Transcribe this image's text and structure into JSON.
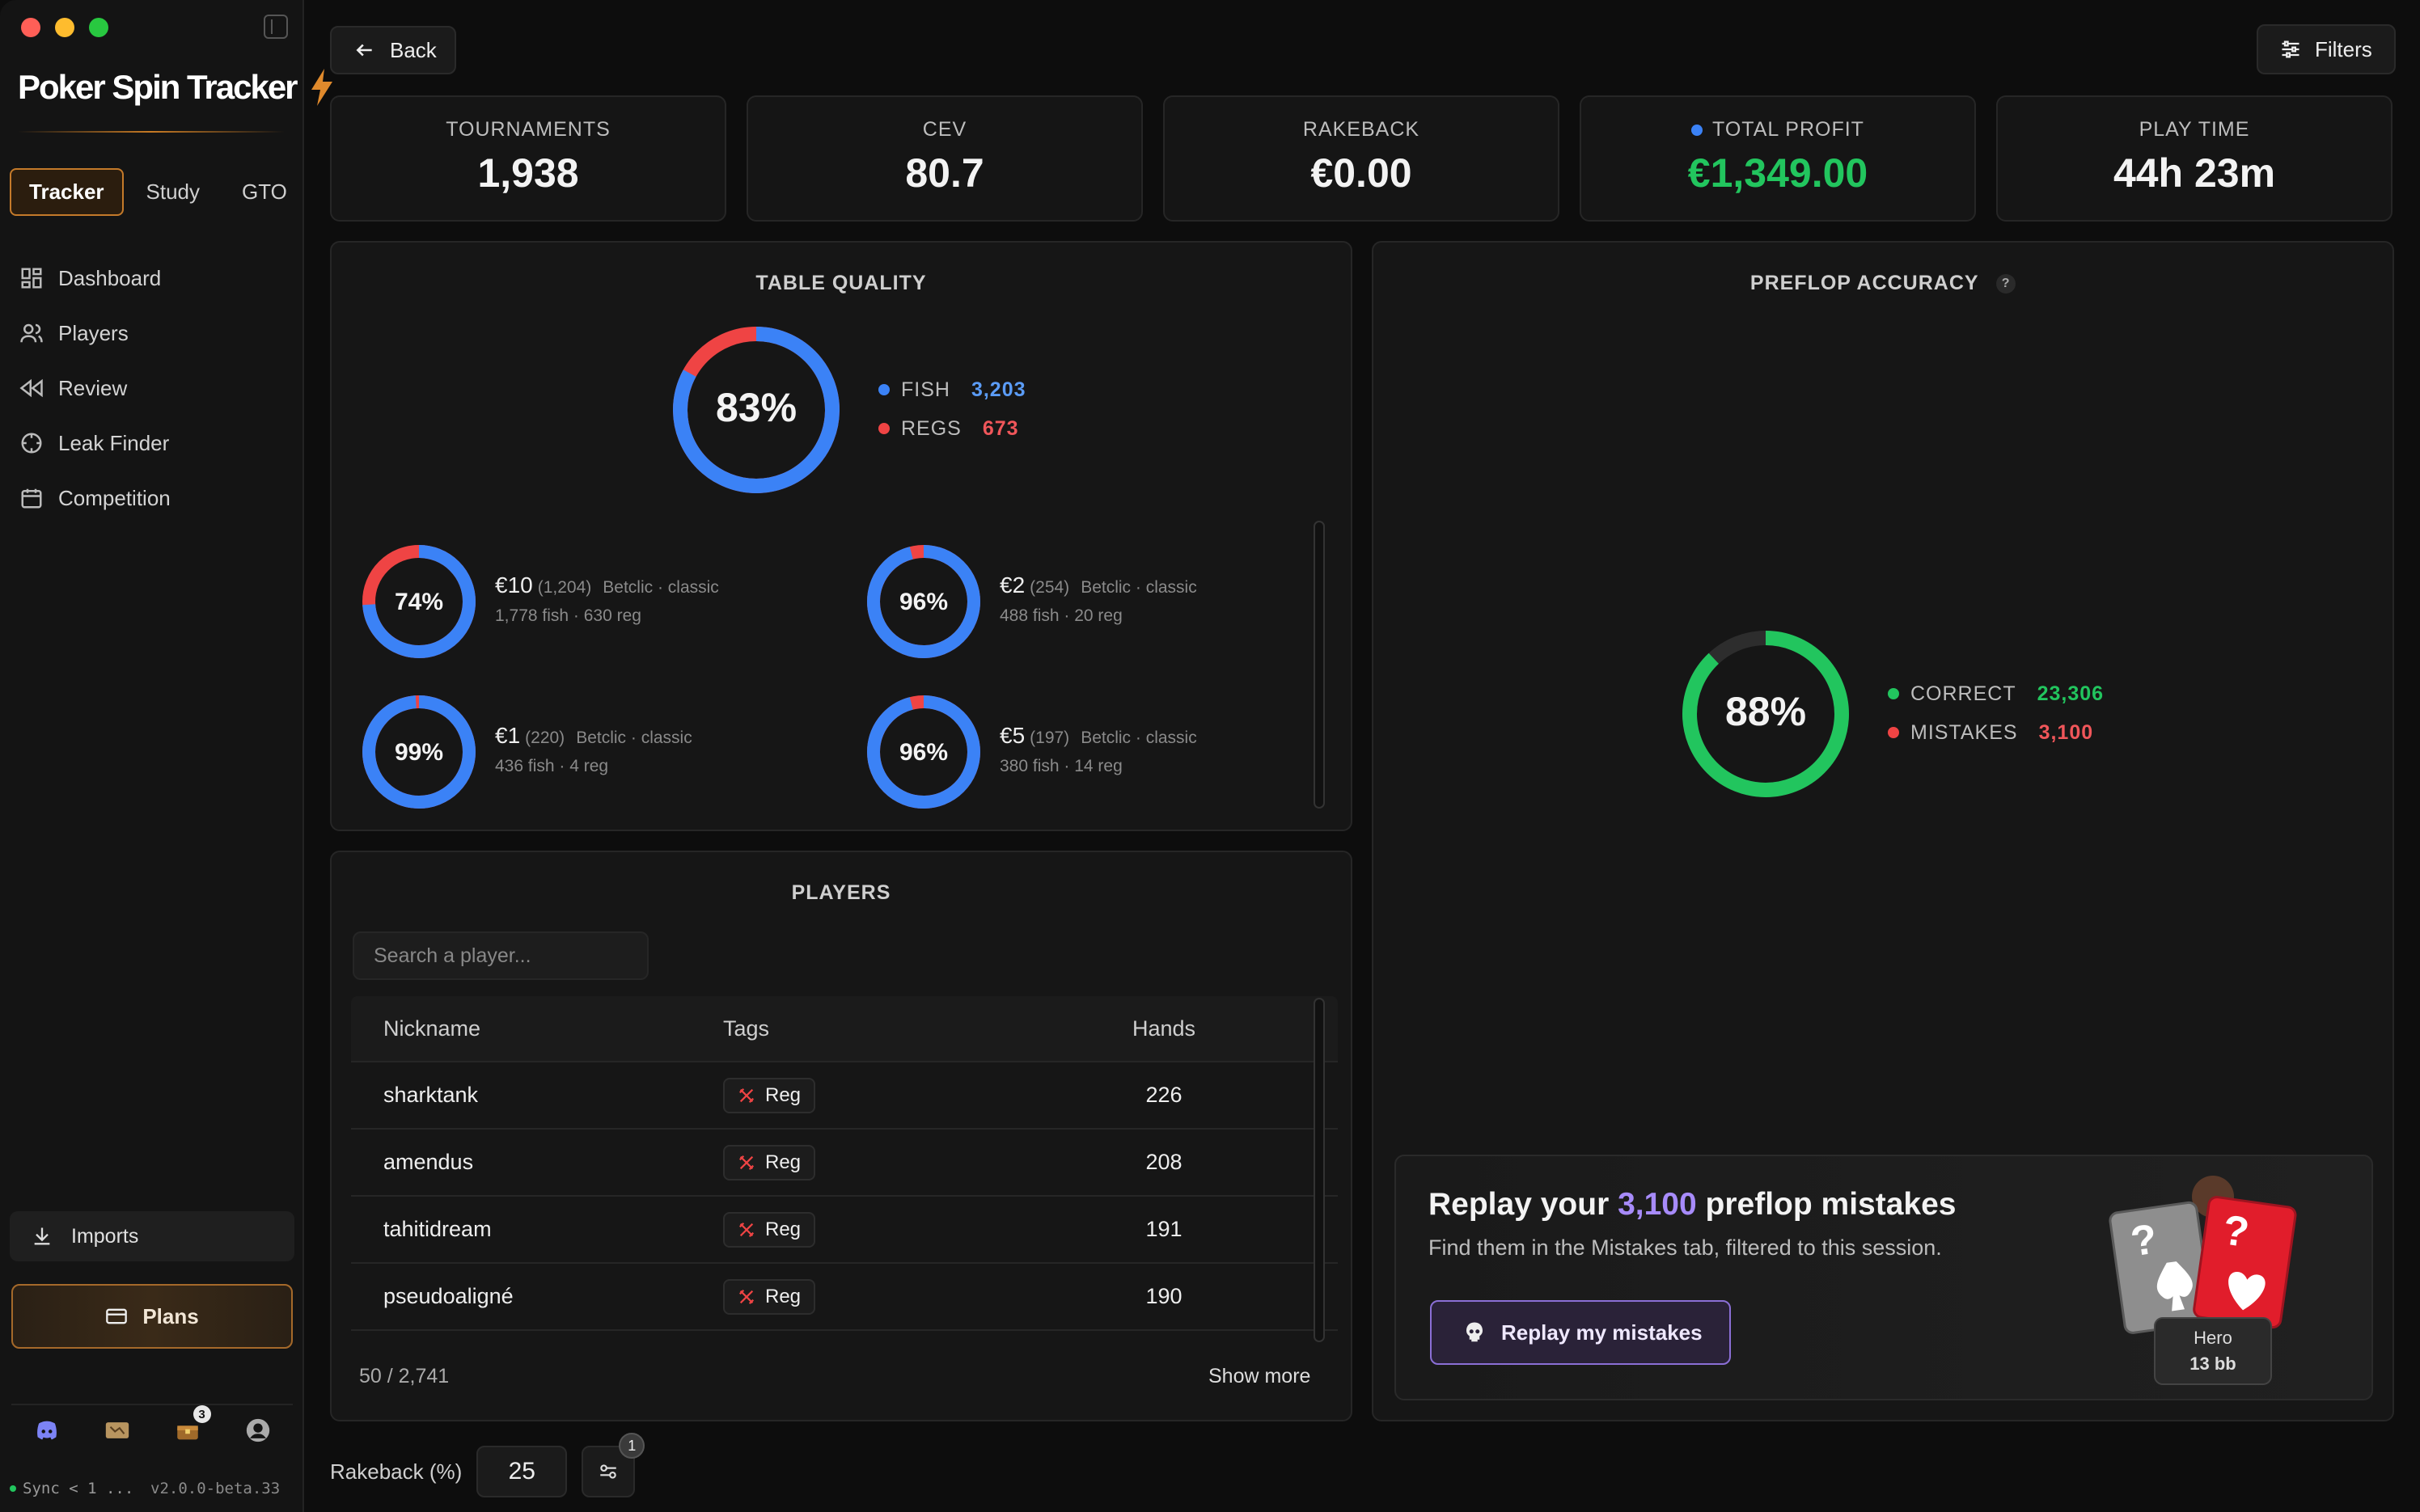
{
  "app": {
    "name": "Poker Spin Tracker"
  },
  "modes": [
    {
      "label": "Tracker",
      "active": true
    },
    {
      "label": "Study"
    },
    {
      "label": "GTO"
    }
  ],
  "nav": [
    {
      "label": "Dashboard",
      "icon": "dashboard-icon"
    },
    {
      "label": "Players",
      "icon": "users-icon"
    },
    {
      "label": "Review",
      "icon": "rewind-icon"
    },
    {
      "label": "Leak Finder",
      "icon": "crosshair-icon"
    },
    {
      "label": "Competition",
      "icon": "calendar-icon"
    }
  ],
  "sidebar": {
    "imports": "Imports",
    "plans": "Plans",
    "notifications_count": "3",
    "sync": "Sync < 1 ...",
    "version": "v2.0.0-beta.33"
  },
  "toolbar": {
    "back": "Back",
    "filters": "Filters"
  },
  "stats": [
    {
      "label": "TOURNAMENTS",
      "value": "1,938"
    },
    {
      "label": "CEV",
      "value": "80.7"
    },
    {
      "label": "RAKEBACK",
      "value": "€0.00"
    },
    {
      "label": "TOTAL PROFIT",
      "value": "€1,349.00",
      "color": "#22c55e"
    },
    {
      "label": "PLAY TIME",
      "value": "44h 23m"
    }
  ],
  "table_quality": {
    "title": "TABLE QUALITY",
    "percent_label": "83%",
    "fish_fraction": 0.83,
    "fish_label": "FISH",
    "fish_value": "3,203",
    "regs_label": "REGS",
    "regs_value": "673",
    "stakes": [
      {
        "pct": "74%",
        "fraction": 0.74,
        "amount": "€10",
        "count": "(1,204)",
        "site": "Betclic · classic",
        "detail": "1,778 fish · 630 reg"
      },
      {
        "pct": "96%",
        "fraction": 0.96,
        "amount": "€2",
        "count": "(254)",
        "site": "Betclic · classic",
        "detail": "488 fish · 20 reg"
      },
      {
        "pct": "99%",
        "fraction": 0.99,
        "amount": "€1",
        "count": "(220)",
        "site": "Betclic · classic",
        "detail": "436 fish · 4 reg"
      },
      {
        "pct": "96%",
        "fraction": 0.96,
        "amount": "€5",
        "count": "(197)",
        "site": "Betclic · classic",
        "detail": "380 fish · 14 reg"
      }
    ]
  },
  "preflop": {
    "title": "PREFLOP ACCURACY",
    "help": "?",
    "percent_label": "88%",
    "correct_fraction": 0.88,
    "correct_label": "CORRECT",
    "correct_value": "23,306",
    "mistakes_label": "MISTAKES",
    "mistakes_value": "3,100"
  },
  "players": {
    "title": "PLAYERS",
    "search_placeholder": "Search a player...",
    "columns": [
      "Nickname",
      "Tags",
      "Hands"
    ],
    "rows": [
      {
        "nickname": "sharktank",
        "tag": "Reg",
        "hands": "226"
      },
      {
        "nickname": "amendus",
        "tag": "Reg",
        "hands": "208"
      },
      {
        "nickname": "tahitidream",
        "tag": "Reg",
        "hands": "191"
      },
      {
        "nickname": "pseudoaligné",
        "tag": "Reg",
        "hands": "190"
      }
    ],
    "count": "50 / 2,741",
    "show_more": "Show more"
  },
  "replay": {
    "title_pre": "Replay your ",
    "title_count": "3,100",
    "title_post": " preflop mistakes",
    "subtitle": "Find them in the Mistakes tab, filtered to this session.",
    "button": "Replay my mistakes",
    "hero_label": "Hero",
    "hero_stack": "13 bb",
    "card_mark": "?"
  },
  "rakeback": {
    "label": "Rakeback (%)",
    "value": "25",
    "filter_badge": "1"
  },
  "colors": {
    "fish": "#3b82f6",
    "regs": "#ef4444",
    "correct": "#22c55e",
    "accent": "#c47a2a",
    "purple": "#a78bfa"
  }
}
